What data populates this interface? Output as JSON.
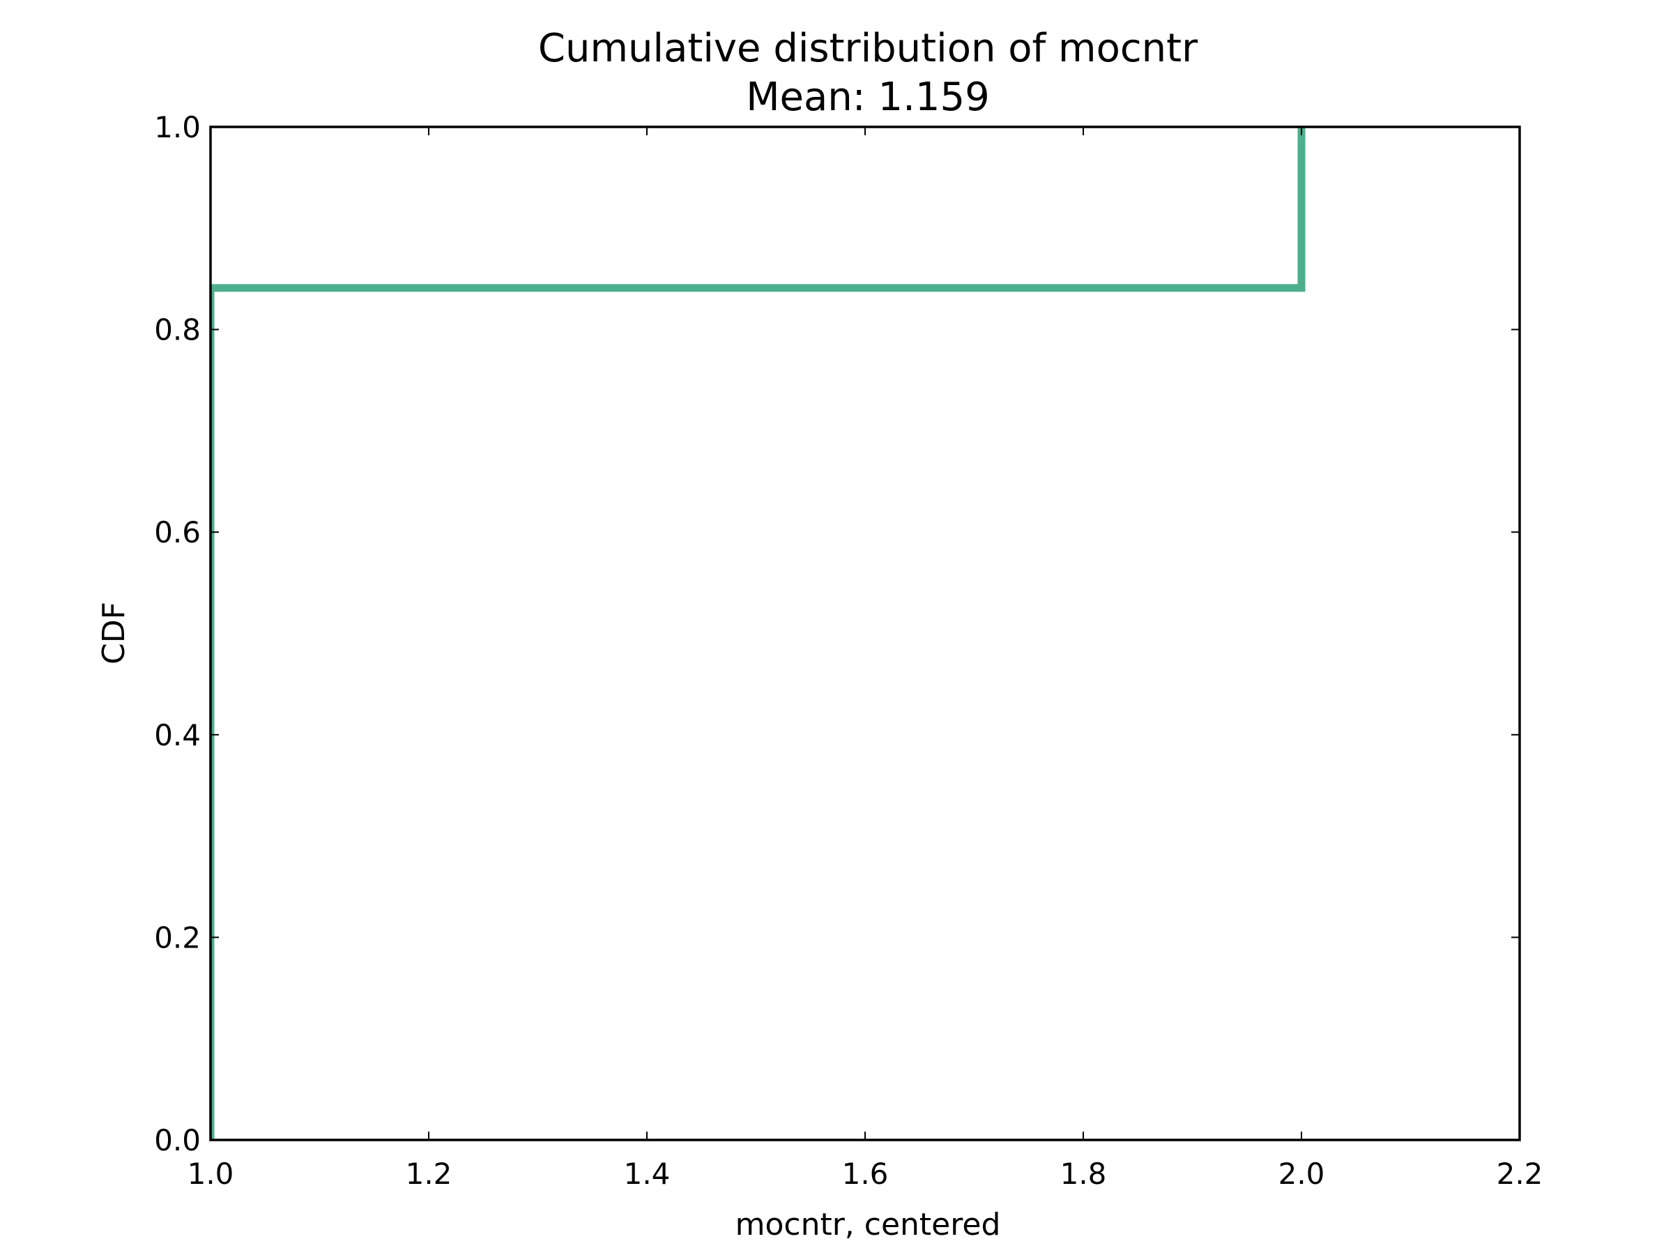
{
  "chart_data": {
    "type": "line",
    "title": "Cumulative distribution of mocntr",
    "subtitle": "Mean: 1.159",
    "xlabel": "mocntr, centered",
    "ylabel": "CDF",
    "xlim": [
      1.0,
      2.2
    ],
    "ylim": [
      0.0,
      1.0
    ],
    "xticks": [
      "1.0",
      "1.2",
      "1.4",
      "1.6",
      "1.8",
      "2.0",
      "2.2"
    ],
    "yticks": [
      "0.0",
      "0.2",
      "0.4",
      "0.6",
      "0.8",
      "1.0"
    ],
    "grid": false,
    "series": [
      {
        "step": "post",
        "x": [
          1.0,
          1.0,
          2.0,
          2.0
        ],
        "y": [
          0.0,
          0.841,
          0.841,
          1.0
        ]
      }
    ],
    "colors": {
      "line": "#4daf8c",
      "axes": "#000000"
    }
  }
}
